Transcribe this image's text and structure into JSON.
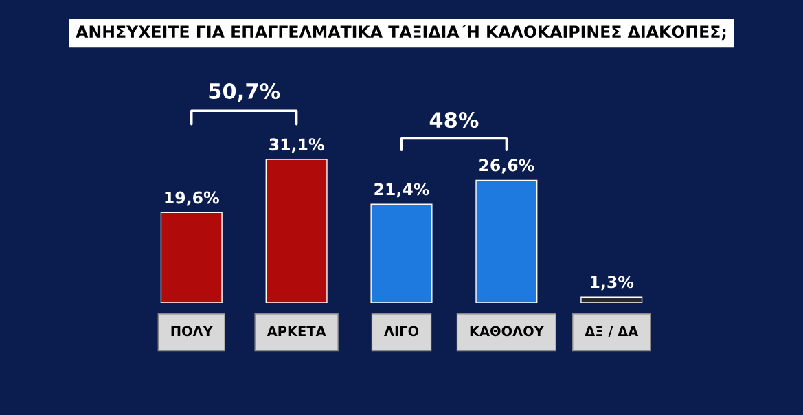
{
  "chart_data": {
    "type": "bar",
    "title": "ΑΝΗΣΥΧΕΙΤΕ ΓΙΑ ΕΠΑΓΓΕΛΜΑΤΙΚΑ ΤΑΞΙΔΙΑ΄Η ΚΑΛΟΚΑΙΡΙΝΕΣ ΔΙΑΚΟΠΕΣ;",
    "categories": [
      "ΠΟΛΥ",
      "ΑΡΚΕΤΑ",
      "ΛΙΓΟ",
      "ΚΑΘΟΛΟΥ",
      "ΔΞ / ΔΑ"
    ],
    "values": [
      19.6,
      31.1,
      21.4,
      26.6,
      1.3
    ],
    "value_labels": [
      "19,6%",
      "31,1%",
      "21,4%",
      "26,6%",
      "1,3%"
    ],
    "colors": [
      "#b00a0a",
      "#b00a0a",
      "#1f7ae0",
      "#1f7ae0",
      "#2a2a2a"
    ],
    "annotations": [
      "50,7%",
      "48%"
    ],
    "grid": false,
    "legend": false
  }
}
